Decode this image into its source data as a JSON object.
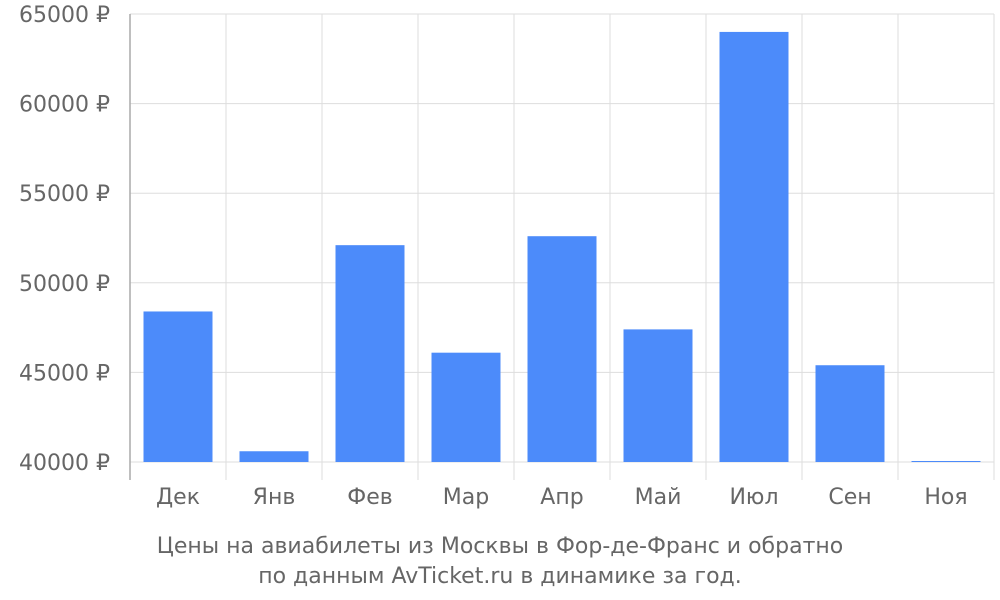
{
  "chart_data": {
    "type": "bar",
    "categories": [
      "Дек",
      "Янв",
      "Фев",
      "Мар",
      "Апр",
      "Май",
      "Июл",
      "Сен",
      "Ноя"
    ],
    "values": [
      48400,
      40600,
      52100,
      46100,
      52600,
      47400,
      64000,
      45400,
      40050
    ],
    "y_ticks": [
      40000,
      45000,
      50000,
      55000,
      60000,
      65000
    ],
    "y_tick_labels": [
      "40000 ₽",
      "45000 ₽",
      "50000 ₽",
      "55000 ₽",
      "60000 ₽",
      "65000 ₽"
    ],
    "ylim": [
      40000,
      65000
    ],
    "grid": true,
    "bar_color": "#4c8bfa",
    "grid_color": "#dddddd",
    "axis_color": "#aaaaaa",
    "text_color": "#666666"
  },
  "caption": {
    "line1": "Цены на авиабилеты из Москвы в Фор-де-Франс и обратно",
    "line2": "по данным AvTicket.ru в динамике за год."
  }
}
